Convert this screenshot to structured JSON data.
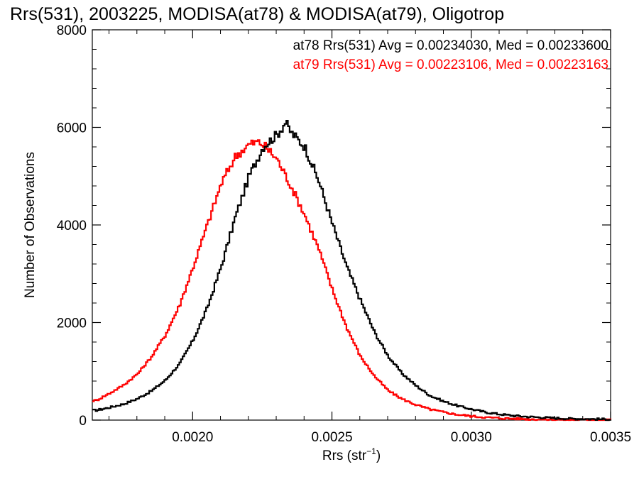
{
  "chart_data": {
    "type": "line",
    "title": "Rrs(531), 2003225, MODISA(at78) & MODISA(at79), Oligotrop",
    "xlabel": "Rrs (str",
    "xlabel_sup": "−1",
    "xlabel_close": ")",
    "ylabel": "Number of Observations",
    "xlim": [
      0.00164,
      0.0035
    ],
    "ylim": [
      0,
      8000
    ],
    "xticks": [
      0.002,
      0.0025,
      0.003,
      0.0035
    ],
    "xtick_labels": [
      "0.0020",
      "0.0025",
      "0.0030",
      "0.0035"
    ],
    "yticks": [
      0,
      2000,
      4000,
      6000,
      8000
    ],
    "ytick_labels": [
      "0",
      "2000",
      "4000",
      "6000",
      "8000"
    ],
    "grid": false,
    "colors": {
      "at78": "#000000",
      "at79": "#ff0000"
    },
    "annotations": [
      "at78 Rrs(531) Avg = 0.00234030, Med = 0.00233600",
      "at79 Rrs(531) Avg = 0.00223106, Med = 0.00223163"
    ],
    "series": [
      {
        "key": "at78",
        "color": "#000000",
        "x": [
          0.00165,
          0.0017,
          0.00175,
          0.0018,
          0.00185,
          0.0019,
          0.00195,
          0.002,
          0.00205,
          0.0021,
          0.00215,
          0.0022,
          0.00225,
          0.0023,
          0.00233,
          0.00235,
          0.0024,
          0.00245,
          0.0025,
          0.00255,
          0.0026,
          0.00265,
          0.0027,
          0.00275,
          0.0028,
          0.00285,
          0.0029,
          0.00295,
          0.003,
          0.00305,
          0.0031,
          0.00315,
          0.0032,
          0.00325,
          0.0033,
          0.00335,
          0.0034,
          0.00345,
          0.0035
        ],
        "y": [
          200,
          260,
          330,
          440,
          600,
          820,
          1150,
          1650,
          2300,
          3150,
          4150,
          5000,
          5600,
          5850,
          6100,
          5900,
          5600,
          4900,
          4000,
          3150,
          2450,
          1800,
          1300,
          950,
          700,
          500,
          380,
          290,
          220,
          160,
          120,
          90,
          70,
          55,
          40,
          30,
          25,
          20,
          15
        ]
      },
      {
        "key": "at79",
        "color": "#ff0000",
        "x": [
          0.00165,
          0.0017,
          0.00175,
          0.0018,
          0.00185,
          0.0019,
          0.00195,
          0.002,
          0.00205,
          0.0021,
          0.00215,
          0.0022,
          0.00223,
          0.00225,
          0.0023,
          0.00235,
          0.0024,
          0.00245,
          0.0025,
          0.00255,
          0.0026,
          0.00265,
          0.0027,
          0.00275,
          0.0028,
          0.00285,
          0.0029,
          0.00295,
          0.003,
          0.00305,
          0.0031,
          0.00315,
          0.0032,
          0.00325,
          0.0033,
          0.00335,
          0.0034,
          0.00345,
          0.0035
        ],
        "y": [
          400,
          550,
          720,
          950,
          1300,
          1750,
          2350,
          3150,
          4000,
          4850,
          5400,
          5650,
          5700,
          5650,
          5350,
          4800,
          4200,
          3500,
          2650,
          1900,
          1300,
          900,
          600,
          430,
          310,
          220,
          160,
          110,
          80,
          55,
          40,
          30,
          20,
          15,
          10,
          8,
          6,
          5,
          4
        ]
      }
    ]
  }
}
